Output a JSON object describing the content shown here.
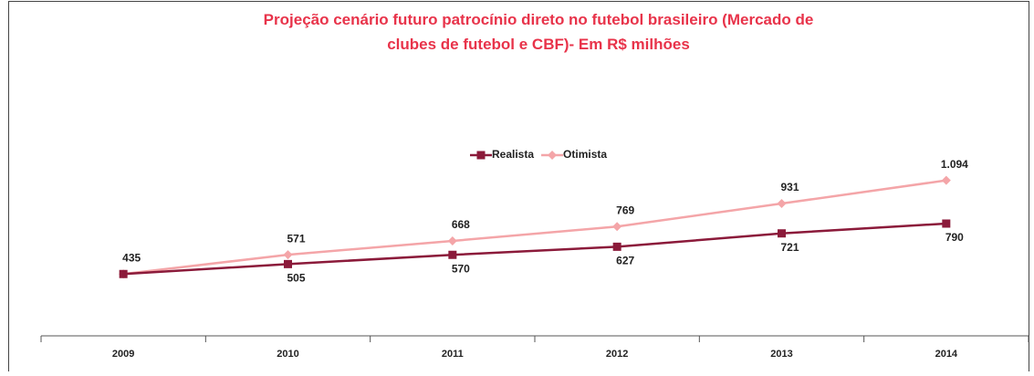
{
  "chart_data": {
    "type": "line",
    "title": "Projeção cenário futuro patrocínio direto no futebol brasileiro  (Mercado de clubes de futebol e CBF)-  Em R$ milhões",
    "categories": [
      "2009",
      "2010",
      "2011",
      "2012",
      "2013",
      "2014"
    ],
    "series": [
      {
        "name": "Realista",
        "color": "#8b1a3a",
        "marker": "square",
        "label_position": "below",
        "values": [
          435,
          505,
          570,
          627,
          721,
          790
        ],
        "value_labels": [
          null,
          "505",
          "570",
          "627",
          "721",
          "790"
        ]
      },
      {
        "name": "Otimista",
        "color": "#f4a5a8",
        "marker": "diamond",
        "label_position": "above",
        "values": [
          435,
          571,
          668,
          769,
          931,
          1094
        ],
        "value_labels": [
          "435",
          "571",
          "668",
          "769",
          "931",
          "1.094"
        ]
      }
    ],
    "ylim": [
      0,
      1400
    ],
    "legend": "top"
  }
}
